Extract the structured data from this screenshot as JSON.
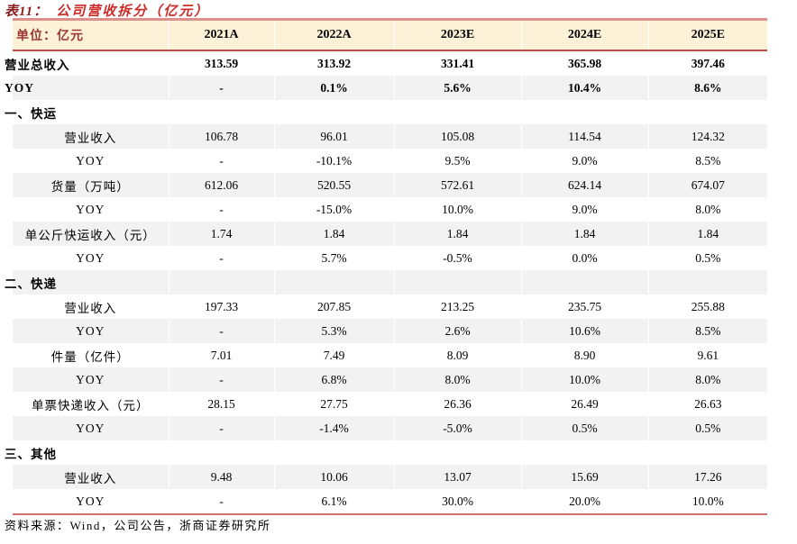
{
  "title": {
    "prefix": "表11：",
    "text": "公司营收拆分（亿元）"
  },
  "table": {
    "unit_label": "单位：亿元",
    "year_columns": [
      "2021A",
      "2022A",
      "2023E",
      "2024E",
      "2025E"
    ],
    "rows": [
      {
        "kind": "total",
        "label": "营业总收入",
        "values": [
          "313.59",
          "313.92",
          "331.41",
          "365.98",
          "397.46"
        ]
      },
      {
        "kind": "total",
        "label": "YOY",
        "values": [
          "-",
          "0.1%",
          "5.6%",
          "10.4%",
          "8.6%"
        ]
      },
      {
        "kind": "section",
        "label": "一、快运",
        "values": [
          "",
          "",
          "",
          "",
          ""
        ]
      },
      {
        "kind": "item",
        "label": "营业收入",
        "values": [
          "106.78",
          "96.01",
          "105.08",
          "114.54",
          "124.32"
        ]
      },
      {
        "kind": "item",
        "label": "YOY",
        "values": [
          "-",
          "-10.1%",
          "9.5%",
          "9.0%",
          "8.5%"
        ]
      },
      {
        "kind": "item",
        "label": "货量（万吨）",
        "values": [
          "612.06",
          "520.55",
          "572.61",
          "624.14",
          "674.07"
        ]
      },
      {
        "kind": "item",
        "label": "YOY",
        "values": [
          "-",
          "-15.0%",
          "10.0%",
          "9.0%",
          "8.0%"
        ]
      },
      {
        "kind": "item",
        "label": "单公斤快运收入（元）",
        "values": [
          "1.74",
          "1.84",
          "1.84",
          "1.84",
          "1.84"
        ]
      },
      {
        "kind": "item",
        "label": "YOY",
        "values": [
          "-",
          "5.7%",
          "-0.5%",
          "0.0%",
          "0.5%"
        ]
      },
      {
        "kind": "section",
        "label": "二、快递",
        "values": [
          "",
          "",
          "",
          "",
          ""
        ]
      },
      {
        "kind": "item",
        "label": "营业收入",
        "values": [
          "197.33",
          "207.85",
          "213.25",
          "235.75",
          "255.88"
        ]
      },
      {
        "kind": "item",
        "label": "YOY",
        "values": [
          "-",
          "5.3%",
          "2.6%",
          "10.6%",
          "8.5%"
        ]
      },
      {
        "kind": "item",
        "label": "件量（亿件）",
        "values": [
          "7.01",
          "7.49",
          "8.09",
          "8.90",
          "9.61"
        ]
      },
      {
        "kind": "item",
        "label": "YOY",
        "values": [
          "-",
          "6.8%",
          "8.0%",
          "10.0%",
          "8.0%"
        ]
      },
      {
        "kind": "item",
        "label": "单票快递收入（元）",
        "values": [
          "28.15",
          "27.75",
          "26.36",
          "26.49",
          "26.63"
        ]
      },
      {
        "kind": "item",
        "label": "YOY",
        "values": [
          "-",
          "-1.4%",
          "-5.0%",
          "0.5%",
          "0.5%"
        ]
      },
      {
        "kind": "section",
        "label": "三、其他",
        "values": [
          "",
          "",
          "",
          "",
          ""
        ]
      },
      {
        "kind": "item",
        "label": "营业收入",
        "values": [
          "9.48",
          "10.06",
          "13.07",
          "15.69",
          "17.26"
        ]
      },
      {
        "kind": "item",
        "label": "YOY",
        "values": [
          "-",
          "6.1%",
          "30.0%",
          "20.0%",
          "10.0%"
        ]
      }
    ]
  },
  "source": "资料来源：Wind，公司公告，浙商证券研究所",
  "colors": {
    "title_prefix": "#8b1e1e",
    "title_text": "#cc2b27",
    "header_bg": "#fdf2d7",
    "border_top": "#dc8f8b",
    "border_header_bottom": "#c24e4a",
    "border_bottom": "#d2716d",
    "row_shade": "#f2f2f2",
    "unit_label_text": "#9a3734"
  }
}
